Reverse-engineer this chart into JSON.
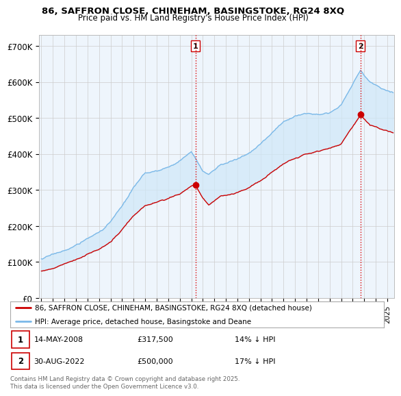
{
  "title1": "86, SAFFRON CLOSE, CHINEHAM, BASINGSTOKE, RG24 8XQ",
  "title2": "Price paid vs. HM Land Registry's House Price Index (HPI)",
  "ylabel_ticks": [
    "£0",
    "£100K",
    "£200K",
    "£300K",
    "£400K",
    "£500K",
    "£600K",
    "£700K"
  ],
  "ytick_vals": [
    0,
    100000,
    200000,
    300000,
    400000,
    500000,
    600000,
    700000
  ],
  "ylim": [
    0,
    730000
  ],
  "xlim_start": 1994.8,
  "xlim_end": 2025.6,
  "hpi_color": "#7ab8e8",
  "hpi_fill_color": "#d0e8f8",
  "price_color": "#cc0000",
  "dashed_color": "#dd0000",
  "marker1_year": 2008.37,
  "marker2_year": 2022.67,
  "marker1_value": 317500,
  "marker2_value": 500000,
  "legend_label1": "86, SAFFRON CLOSE, CHINEHAM, BASINGSTOKE, RG24 8XQ (detached house)",
  "legend_label2": "HPI: Average price, detached house, Basingstoke and Deane",
  "footer": "Contains HM Land Registry data © Crown copyright and database right 2025.\nThis data is licensed under the Open Government Licence v3.0.",
  "bg_color": "#ffffff",
  "grid_color": "#cccccc",
  "chart_bg": "#eef5fc"
}
